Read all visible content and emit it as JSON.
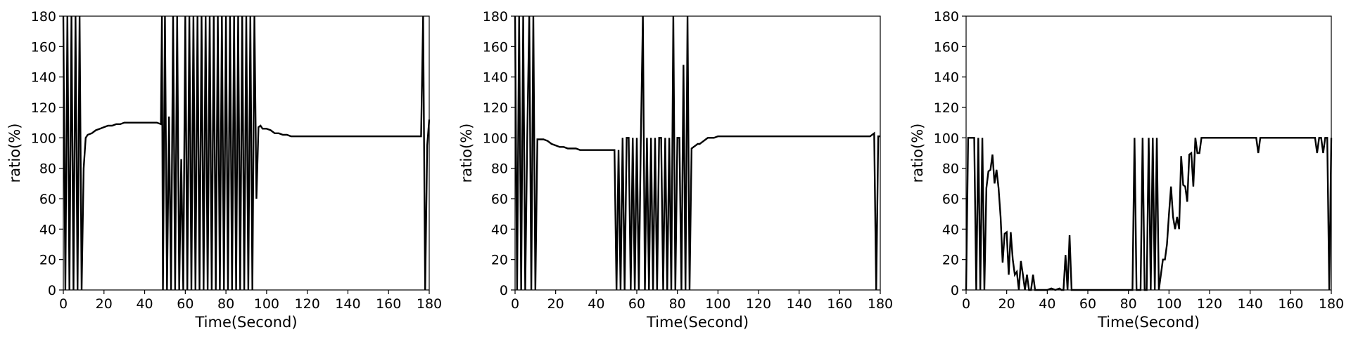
{
  "chart_data": [
    {
      "type": "line",
      "xlabel": "Time(Second)",
      "ylabel": "ratio(%)",
      "xlim": [
        0,
        180
      ],
      "ylim": [
        0,
        180
      ],
      "xticks": [
        0,
        20,
        40,
        60,
        80,
        100,
        120,
        140,
        160,
        180
      ],
      "yticks": [
        0,
        20,
        40,
        60,
        80,
        100,
        120,
        140,
        160,
        180
      ],
      "grid": false,
      "series": [
        {
          "color": "#000000",
          "x": [
            0,
            1,
            2,
            3,
            4,
            5,
            6,
            7,
            8,
            9,
            10,
            11,
            12,
            14,
            16,
            18,
            20,
            22,
            24,
            26,
            28,
            30,
            32,
            34,
            36,
            38,
            40,
            42,
            44,
            46,
            48,
            48.5,
            49,
            50,
            51,
            52,
            53,
            54,
            55,
            56,
            57,
            58,
            59,
            60,
            61,
            62,
            63,
            64,
            65,
            66,
            67,
            68,
            69,
            70,
            71,
            72,
            73,
            74,
            75,
            76,
            77,
            78,
            79,
            80,
            81,
            82,
            83,
            84,
            85,
            86,
            87,
            88,
            89,
            90,
            91,
            92,
            93,
            94,
            95,
            96,
            97,
            98,
            100,
            102,
            104,
            106,
            108,
            110,
            112,
            114,
            116,
            120,
            125,
            130,
            135,
            140,
            145,
            150,
            155,
            160,
            165,
            170,
            172,
            174,
            175,
            176,
            177,
            178,
            179,
            180
          ],
          "y": [
            180,
            0,
            180,
            0,
            180,
            0,
            180,
            0,
            180,
            0,
            80,
            100,
            102,
            103,
            105,
            106,
            107,
            108,
            108,
            109,
            109,
            110,
            110,
            110,
            110,
            110,
            110,
            110,
            110,
            110,
            109,
            180,
            0,
            180,
            0,
            114,
            0,
            180,
            0,
            180,
            0,
            86,
            0,
            180,
            0,
            180,
            0,
            180,
            0,
            180,
            0,
            180,
            0,
            180,
            0,
            180,
            0,
            180,
            0,
            180,
            0,
            180,
            0,
            180,
            0,
            180,
            0,
            180,
            0,
            180,
            0,
            180,
            0,
            180,
            0,
            180,
            0,
            180,
            60,
            107,
            108,
            106,
            106,
            105,
            103,
            103,
            102,
            102,
            101,
            101,
            101,
            101,
            101,
            101,
            101,
            101,
            101,
            101,
            101,
            101,
            101,
            101,
            101,
            101,
            101,
            101,
            180,
            0,
            95,
            112
          ]
        }
      ]
    },
    {
      "type": "line",
      "xlabel": "Time(Second)",
      "ylabel": "ratio(%)",
      "xlim": [
        0,
        180
      ],
      "ylim": [
        0,
        180
      ],
      "xticks": [
        0,
        20,
        40,
        60,
        80,
        100,
        120,
        140,
        160,
        180
      ],
      "yticks": [
        0,
        20,
        40,
        60,
        80,
        100,
        120,
        140,
        160,
        180
      ],
      "grid": false,
      "series": [
        {
          "color": "#000000",
          "x": [
            0,
            1,
            2,
            3,
            4,
            5,
            6,
            7,
            8,
            9,
            10,
            11,
            14,
            16,
            18,
            20,
            22,
            24,
            26,
            28,
            30,
            32,
            34,
            36,
            38,
            40,
            42,
            44,
            46,
            48,
            49,
            50,
            51,
            52,
            53,
            54,
            55,
            56,
            57,
            58,
            59,
            60,
            61,
            62,
            63,
            64,
            65,
            66,
            67,
            68,
            69,
            70,
            71,
            72,
            73,
            74,
            75,
            76,
            77,
            78,
            79,
            80,
            81,
            82,
            83,
            84,
            85,
            86,
            87,
            88,
            89,
            90,
            91,
            92,
            93,
            94,
            95,
            96,
            98,
            100,
            102,
            104,
            106,
            108,
            110,
            115,
            120,
            125,
            130,
            135,
            140,
            145,
            150,
            155,
            160,
            165,
            170,
            175,
            177,
            178,
            179,
            180
          ],
          "y": [
            180,
            0,
            180,
            0,
            180,
            0,
            100,
            180,
            0,
            180,
            0,
            99,
            99,
            98,
            96,
            95,
            94,
            94,
            93,
            93,
            93,
            92,
            92,
            92,
            92,
            92,
            92,
            92,
            92,
            92,
            92,
            0,
            92,
            0,
            100,
            0,
            100,
            100,
            0,
            100,
            0,
            100,
            0,
            100,
            180,
            0,
            100,
            0,
            100,
            0,
            100,
            0,
            100,
            100,
            0,
            100,
            0,
            100,
            0,
            180,
            0,
            100,
            100,
            0,
            148,
            0,
            180,
            0,
            93,
            94,
            95,
            96,
            96,
            97,
            98,
            99,
            100,
            100,
            100,
            101,
            101,
            101,
            101,
            101,
            101,
            101,
            101,
            101,
            101,
            101,
            101,
            101,
            101,
            101,
            101,
            101,
            101,
            101,
            103,
            0,
            101,
            101
          ]
        }
      ]
    },
    {
      "type": "line",
      "xlabel": "Time(Second)",
      "ylabel": "ratio(%)",
      "xlim": [
        0,
        180
      ],
      "ylim": [
        0,
        180
      ],
      "xticks": [
        0,
        20,
        40,
        60,
        80,
        100,
        120,
        140,
        160,
        180
      ],
      "yticks": [
        0,
        20,
        40,
        60,
        80,
        100,
        120,
        140,
        160,
        180
      ],
      "grid": false,
      "series": [
        {
          "color": "#000000",
          "x": [
            0,
            1,
            2,
            3,
            4,
            5,
            6,
            7,
            8,
            9,
            10,
            11,
            12,
            13,
            14,
            15,
            16,
            17,
            18,
            19,
            20,
            21,
            22,
            23,
            24,
            25,
            26,
            27,
            28,
            29,
            30,
            31,
            32,
            33,
            34,
            35,
            36,
            37,
            38,
            39,
            40,
            42,
            44,
            46,
            47,
            48,
            49,
            50,
            51,
            52,
            55,
            60,
            65,
            70,
            75,
            80,
            81,
            82,
            83,
            84,
            85,
            86,
            87,
            88,
            89,
            90,
            91,
            92,
            93,
            94,
            95,
            96,
            97,
            98,
            99,
            100,
            101,
            102,
            103,
            104,
            105,
            106,
            107,
            108,
            109,
            110,
            111,
            112,
            113,
            114,
            115,
            116,
            118,
            120,
            125,
            130,
            135,
            138,
            139,
            140,
            141,
            142,
            143,
            144,
            145,
            150,
            155,
            160,
            165,
            170,
            171,
            172,
            173,
            174,
            175,
            176,
            177,
            178,
            179,
            180
          ],
          "y": [
            0,
            100,
            100,
            100,
            100,
            0,
            100,
            0,
            100,
            0,
            67,
            78,
            79,
            89,
            70,
            79,
            67,
            48,
            18,
            37,
            38,
            10,
            38,
            20,
            10,
            12,
            0,
            19,
            10,
            0,
            10,
            0,
            0,
            10,
            0,
            0,
            0,
            0,
            0,
            0,
            0,
            1,
            0,
            1,
            0,
            0,
            23,
            0,
            36,
            0,
            0,
            0,
            0,
            0,
            0,
            0,
            0,
            0,
            100,
            0,
            0,
            0,
            100,
            0,
            0,
            100,
            0,
            100,
            0,
            100,
            0,
            10,
            20,
            20,
            30,
            50,
            68,
            48,
            40,
            48,
            40,
            88,
            69,
            68,
            58,
            89,
            90,
            68,
            100,
            90,
            90,
            100,
            100,
            100,
            100,
            100,
            100,
            100,
            100,
            100,
            100,
            100,
            100,
            90,
            100,
            100,
            100,
            100,
            100,
            100,
            100,
            100,
            90,
            100,
            100,
            90,
            100,
            100,
            0,
            100
          ]
        }
      ]
    }
  ]
}
